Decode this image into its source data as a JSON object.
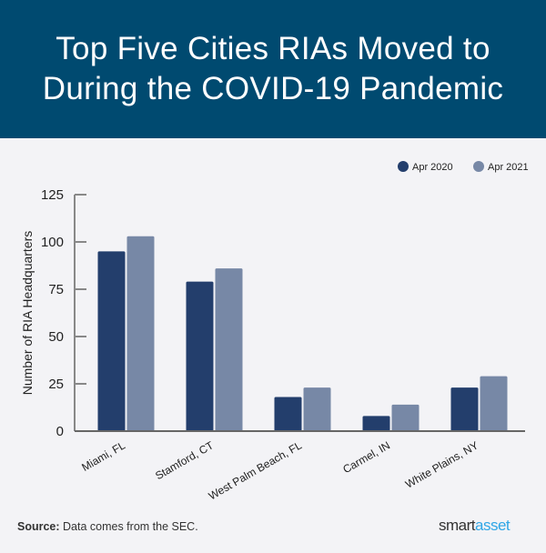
{
  "header": {
    "title_line1": "Top Five Cities RIAs Moved to",
    "title_line2": "During the COVID-19 Pandemic"
  },
  "footer": {
    "source_label": "Source:",
    "source_text": " Data comes from the SEC.",
    "logo_part1": "smart",
    "logo_part2": "asset"
  },
  "chart_data": {
    "type": "bar",
    "title": "Top Five Cities RIAs Moved to During the COVID-19 Pandemic",
    "xlabel": "",
    "ylabel": "Number of RIA Headquarters",
    "ylim": [
      0,
      125
    ],
    "yticks": [
      0,
      25,
      50,
      75,
      100,
      125
    ],
    "categories": [
      "Miami, FL",
      "Stamford, CT",
      "West Palm Beach, FL",
      "Carmel, IN",
      "White Plains, NY"
    ],
    "series": [
      {
        "name": "Apr 2020",
        "color": "#233e6c",
        "values": [
          95,
          79,
          18,
          8,
          23
        ]
      },
      {
        "name": "Apr 2021",
        "color": "#7788a6",
        "values": [
          103,
          86,
          23,
          14,
          29
        ]
      }
    ],
    "legend": "top-right",
    "grid": false
  }
}
